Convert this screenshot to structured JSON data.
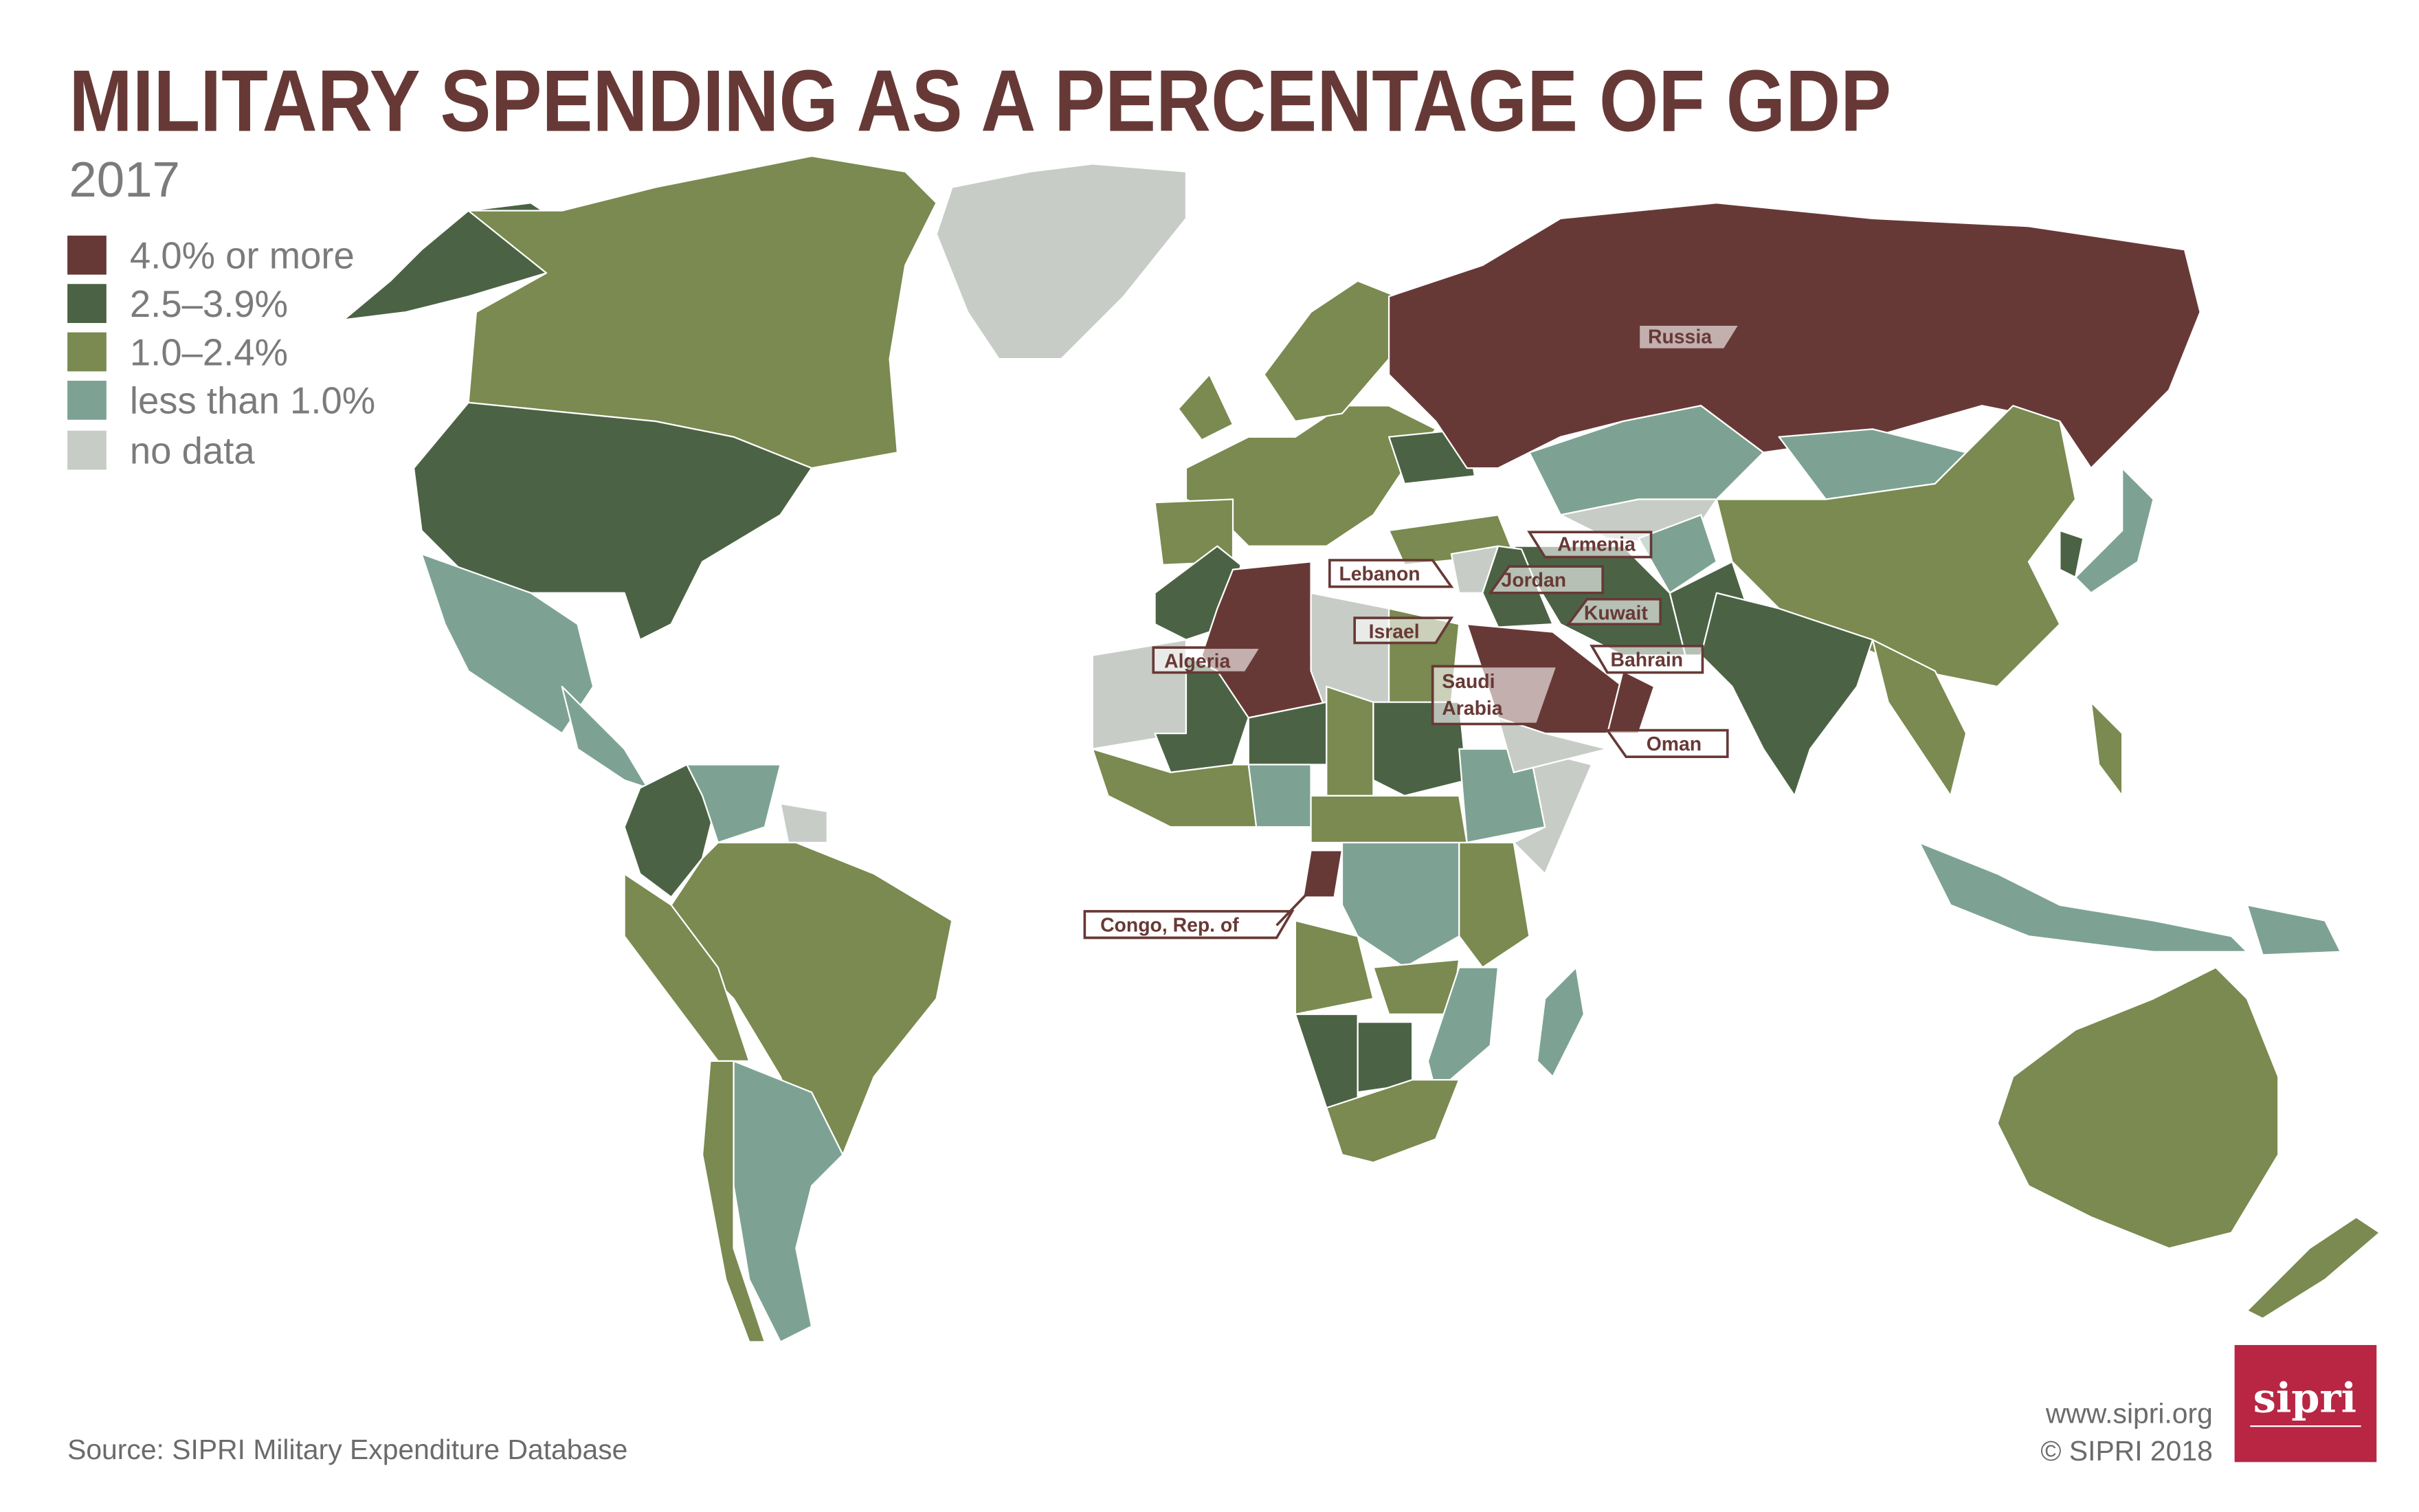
{
  "header": {
    "title": "MILITARY SPENDING AS A PERCENTAGE OF GDP",
    "year": "2017"
  },
  "legend": {
    "items": [
      {
        "label": "4.0% or more",
        "color": "#673936"
      },
      {
        "label": "2.5–3.9%",
        "color": "#4b6344"
      },
      {
        "label": "1.0–2.4%",
        "color": "#7a8a50"
      },
      {
        "label": "less than 1.0%",
        "color": "#7da293"
      },
      {
        "label": "no data",
        "color": "#c7cdc6"
      }
    ]
  },
  "map": {
    "labels": {
      "russia": "Russia",
      "armenia": "Armenia",
      "lebanon": "Lebanon",
      "jordan": "Jordan",
      "kuwait": "Kuwait",
      "israel": "Israel",
      "bahrain": "Bahrain",
      "saudi_line1": "Saudi",
      "saudi_line2": "Arabia",
      "oman": "Oman",
      "algeria": "Algeria",
      "congo": "Congo, Rep. of"
    }
  },
  "footer": {
    "source": "Source: SIPRI Military Expenditure Database",
    "website": "www.sipri.org",
    "copyright": "© SIPRI 2018",
    "logo_text": "sipri",
    "logo_color": "#b82644"
  }
}
